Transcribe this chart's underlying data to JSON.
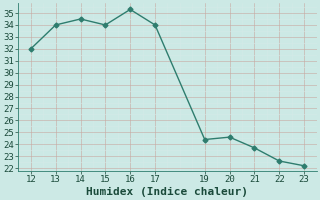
{
  "x": [
    12,
    13,
    14,
    15,
    16,
    17,
    19,
    20,
    21,
    22,
    23
  ],
  "y": [
    32.0,
    34.0,
    34.5,
    34.0,
    35.3,
    34.0,
    24.4,
    24.6,
    23.7,
    22.6,
    22.2
  ],
  "line_color": "#2e7d6e",
  "marker_style": "D",
  "marker_size": 2.5,
  "bg_color": "#cce9e5",
  "grid_major_color": "#b8d4cf",
  "grid_minor_color": "#d4eae7",
  "xlabel": "Humidex (Indice chaleur)",
  "xlabel_fontsize": 8,
  "xlim": [
    11.5,
    23.5
  ],
  "ylim": [
    21.8,
    35.8
  ],
  "xticks": [
    12,
    13,
    14,
    15,
    16,
    17,
    19,
    20,
    21,
    22,
    23
  ],
  "yticks": [
    22,
    23,
    24,
    25,
    26,
    27,
    28,
    29,
    30,
    31,
    32,
    33,
    34,
    35
  ],
  "tick_fontsize": 6.5,
  "line_width": 1.0,
  "tick_color": "#1a4a3a",
  "xlabel_color": "#1a4a3a"
}
